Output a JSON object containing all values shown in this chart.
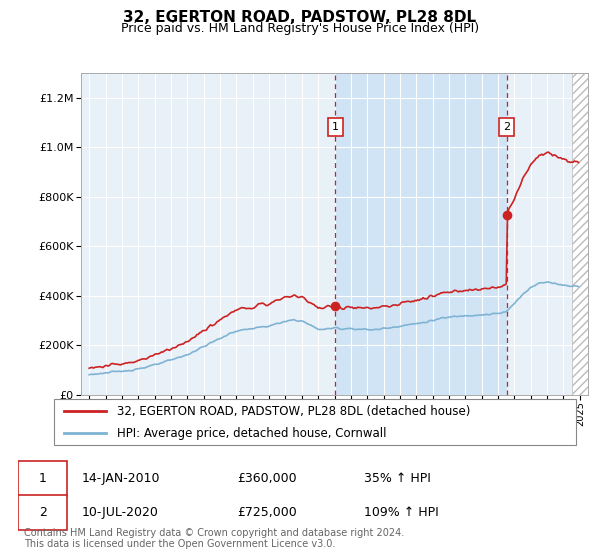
{
  "title": "32, EGERTON ROAD, PADSTOW, PL28 8DL",
  "subtitle": "Price paid vs. HM Land Registry's House Price Index (HPI)",
  "footer": "Contains HM Land Registry data © Crown copyright and database right 2024.\nThis data is licensed under the Open Government Licence v3.0.",
  "legend_line1": "32, EGERTON ROAD, PADSTOW, PL28 8DL (detached house)",
  "legend_line2": "HPI: Average price, detached house, Cornwall",
  "annotation1": {
    "label": "1",
    "date": "14-JAN-2010",
    "price": "£360,000",
    "pct": "35% ↑ HPI"
  },
  "annotation2": {
    "label": "2",
    "date": "10-JUL-2020",
    "price": "£725,000",
    "pct": "109% ↑ HPI"
  },
  "hpi_color": "#7fb3d3",
  "price_color": "#cc2222",
  "vline_color": "#cc2222",
  "background_fill": "#e8f0f8",
  "highlight_fill": "#d0e4f5",
  "ylim": [
    0,
    1300000
  ],
  "yticks": [
    0,
    200000,
    400000,
    600000,
    800000,
    1000000,
    1200000
  ],
  "xlim_start": 1994.5,
  "xlim_end": 2025.5,
  "marker1_x": 2010.04,
  "marker1_y": 360000,
  "marker2_x": 2020.53,
  "marker2_y": 725000,
  "vline1_x": 2010.04,
  "vline2_x": 2020.53,
  "sale1_year": 2010.04,
  "sale2_year": 2020.53
}
